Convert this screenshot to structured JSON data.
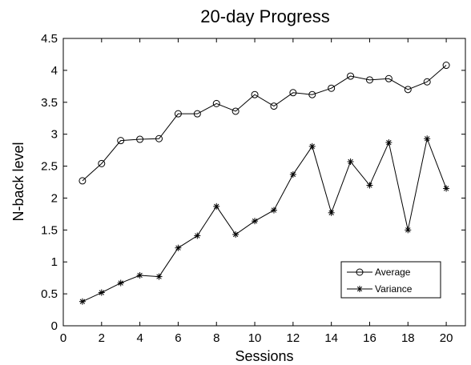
{
  "chart_data": {
    "type": "line",
    "title": "20-day Progress",
    "xlabel": "Sessions",
    "ylabel": "N-back level",
    "xlim": [
      0,
      21
    ],
    "ylim": [
      0,
      4.5
    ],
    "xticks": [
      0,
      2,
      4,
      6,
      8,
      10,
      12,
      14,
      16,
      18,
      20
    ],
    "xtick_labels": [
      "0",
      "2",
      "4",
      "6",
      "8",
      "10",
      "12",
      "14",
      "16",
      "18",
      "20"
    ],
    "yticks": [
      0,
      0.5,
      1,
      1.5,
      2,
      2.5,
      3,
      3.5,
      4,
      4.5
    ],
    "ytick_labels": [
      "0",
      "0.5",
      "1",
      "1.5",
      "2",
      "2.5",
      "3",
      "3.5",
      "4",
      "4.5"
    ],
    "grid": false,
    "legend_position": "bottom-right",
    "x": [
      1,
      2,
      3,
      4,
      5,
      6,
      7,
      8,
      9,
      10,
      11,
      12,
      13,
      14,
      15,
      16,
      17,
      18,
      19,
      20
    ],
    "series": [
      {
        "name": "Average",
        "marker": "circle",
        "color": "#000000",
        "values": [
          2.27,
          2.54,
          2.9,
          2.92,
          2.93,
          3.32,
          3.32,
          3.48,
          3.36,
          3.62,
          3.44,
          3.65,
          3.62,
          3.72,
          3.91,
          3.85,
          3.87,
          3.7,
          3.82,
          4.08
        ]
      },
      {
        "name": "Variance",
        "marker": "star",
        "color": "#000000",
        "values": [
          0.38,
          0.52,
          0.67,
          0.79,
          0.77,
          1.22,
          1.41,
          1.87,
          1.43,
          1.64,
          1.81,
          2.37,
          2.81,
          1.77,
          2.57,
          2.2,
          2.87,
          1.5,
          2.93,
          2.15
        ]
      }
    ]
  }
}
